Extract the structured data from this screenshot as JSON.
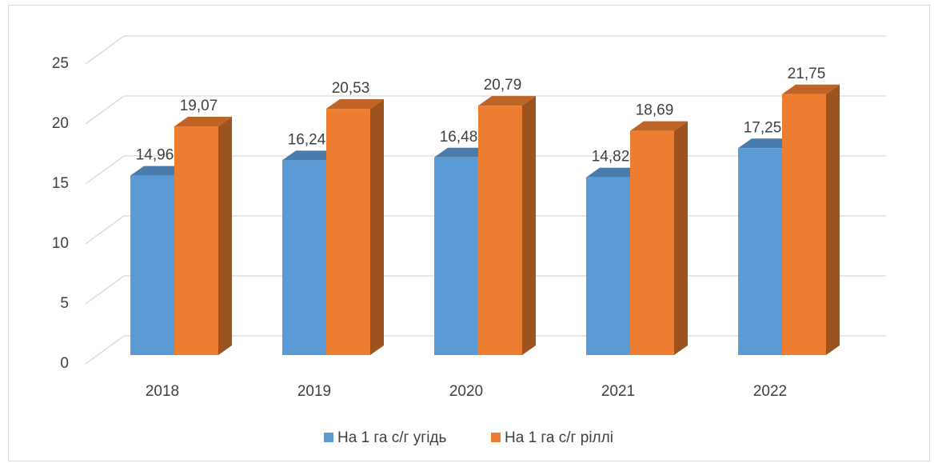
{
  "chart_data": {
    "type": "bar3d",
    "categories": [
      "2018",
      "2019",
      "2020",
      "2021",
      "2022"
    ],
    "series": [
      {
        "name": "На 1 га с/г угідь",
        "color": "#5b9bd5",
        "values": [
          14.96,
          16.24,
          16.48,
          14.82,
          17.25
        ],
        "value_labels": [
          "14,96",
          "16,24",
          "16,48",
          "14,82",
          "17,25"
        ]
      },
      {
        "name": "На 1 га с/г ріллі",
        "color": "#ed7d31",
        "values": [
          19.07,
          20.53,
          20.79,
          18.69,
          21.75
        ],
        "value_labels": [
          "19,07",
          "20,53",
          "20,79",
          "18,69",
          "21,75"
        ]
      }
    ],
    "ylim": [
      0,
      25
    ],
    "yticks": [
      0,
      5,
      10,
      15,
      20,
      25
    ],
    "grid": true,
    "legend": "bottom"
  }
}
